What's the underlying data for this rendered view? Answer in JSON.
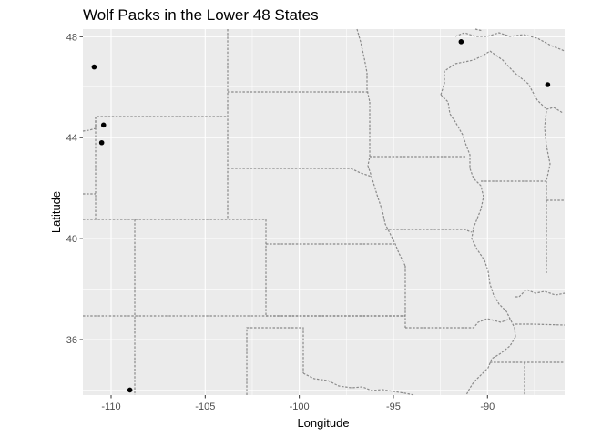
{
  "chart_data": {
    "type": "scatter",
    "title": "Wolf Packs in the Lower 48 States",
    "xlabel": "Longitude",
    "ylabel": "Latitude",
    "xlim": [
      -111.5,
      -85.9
    ],
    "ylim": [
      33.8,
      48.3
    ],
    "x_ticks": [
      -110,
      -105,
      -100,
      -95,
      -90
    ],
    "x_tick_labels": [
      "-110",
      "-105",
      "-100",
      "-95",
      "-90"
    ],
    "y_ticks": [
      36,
      40,
      44,
      48
    ],
    "y_tick_labels": [
      "36",
      "40",
      "44",
      "48"
    ],
    "grid": true,
    "background": "#ebebeb",
    "point_color": "#000000",
    "boundary_color": "#7f7f7f",
    "points": [
      {
        "x": -110.9,
        "y": 46.8
      },
      {
        "x": -110.4,
        "y": 44.5
      },
      {
        "x": -110.5,
        "y": 43.8
      },
      {
        "x": -109.0,
        "y": 34.0
      },
      {
        "x": -91.4,
        "y": 47.8
      },
      {
        "x": -86.8,
        "y": 46.1
      }
    ]
  }
}
